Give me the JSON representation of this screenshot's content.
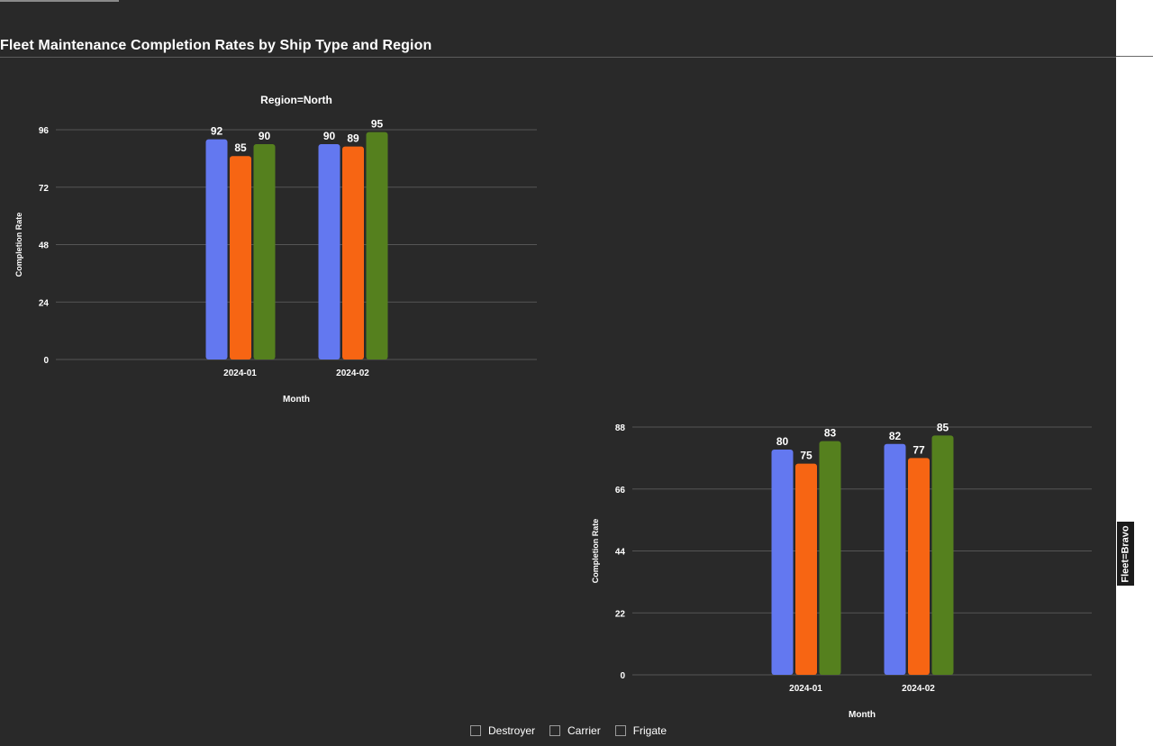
{
  "title": "Fleet Maintenance Completion Rates by Ship Type and Region",
  "facet_label_right": "Fleet=Bravo",
  "colors": {
    "background": "#292929",
    "grid": "#555555",
    "Destroyer": "#6378f0",
    "Carrier": "#f76513",
    "Frigate": "#55801e"
  },
  "legend": [
    {
      "label": "Destroyer"
    },
    {
      "label": "Carrier"
    },
    {
      "label": "Frigate"
    }
  ],
  "chart_data": [
    {
      "type": "bar",
      "title": "Region=North",
      "xlabel": "Month",
      "ylabel": "Completion Rate",
      "categories": [
        "2024-01",
        "2024-02"
      ],
      "ylim": [
        0,
        96
      ],
      "yticks": [
        0,
        24,
        48,
        72,
        96
      ],
      "grid": true,
      "series": [
        {
          "name": "Destroyer",
          "values": [
            92,
            90
          ]
        },
        {
          "name": "Carrier",
          "values": [
            85,
            89
          ]
        },
        {
          "name": "Frigate",
          "values": [
            90,
            95
          ]
        }
      ]
    },
    {
      "type": "bar",
      "title": "",
      "xlabel": "Month",
      "ylabel": "Completion Rate",
      "categories": [
        "2024-01",
        "2024-02"
      ],
      "ylim": [
        0,
        88
      ],
      "yticks": [
        0,
        22,
        44,
        66,
        88
      ],
      "grid": true,
      "series": [
        {
          "name": "Destroyer",
          "values": [
            80,
            82
          ]
        },
        {
          "name": "Carrier",
          "values": [
            75,
            77
          ]
        },
        {
          "name": "Frigate",
          "values": [
            83,
            85
          ]
        }
      ]
    }
  ]
}
